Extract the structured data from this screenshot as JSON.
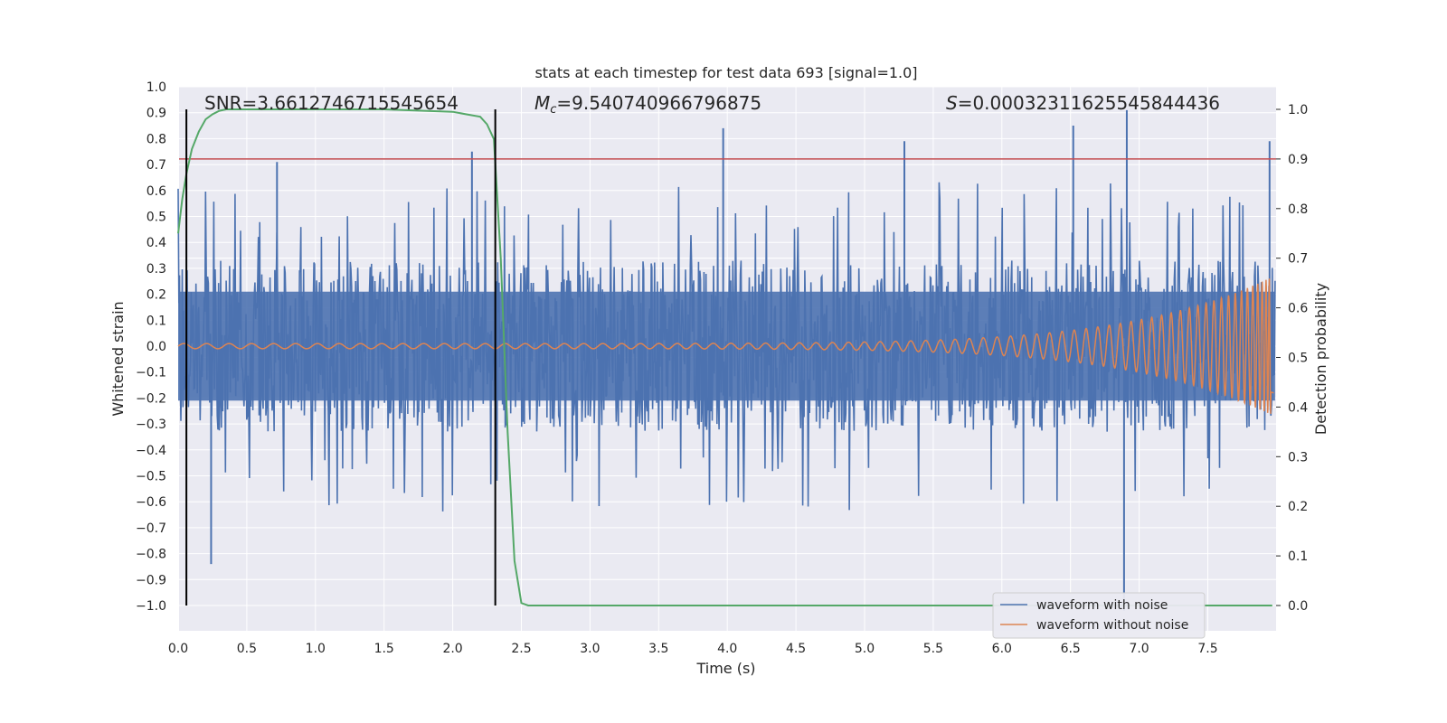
{
  "chart_data": {
    "type": "line",
    "title": "stats at each timestep for test data 693 [signal=1.0]",
    "xlabel": "Time (s)",
    "ylabel": "Whitened strain",
    "y2label": "Detection probability",
    "xlim": [
      0.0,
      8.0
    ],
    "ylim": [
      -1.0,
      1.0
    ],
    "y2lim": [
      0.0,
      1.0
    ],
    "x_ticks": [
      "0.0",
      "0.5",
      "1.0",
      "1.5",
      "2.0",
      "2.5",
      "3.0",
      "3.5",
      "4.0",
      "4.5",
      "5.0",
      "5.5",
      "6.0",
      "6.5",
      "7.0",
      "7.5"
    ],
    "y_ticks": [
      "1.0",
      "0.9",
      "0.8",
      "0.7",
      "0.6",
      "0.5",
      "0.4",
      "0.3",
      "0.2",
      "0.1",
      "0.0",
      "−0.1",
      "−0.2",
      "−0.3",
      "−0.4",
      "−0.5",
      "−0.6",
      "−0.7",
      "−0.8",
      "−0.9",
      "−1.0"
    ],
    "y2_ticks": [
      "1.0",
      "0.9",
      "0.8",
      "0.7",
      "0.6",
      "0.5",
      "0.4",
      "0.3",
      "0.2",
      "0.1",
      "0.0"
    ],
    "grid": true,
    "legend_position": "lower-right",
    "annotations": {
      "snr": "SNR=3.6612746715545654",
      "mc_symbol": "M",
      "mc_sub": "c",
      "mc_value": "=9.540740966796875",
      "s_symbol": "S",
      "s_value": "=0.00032311625545844436"
    },
    "series": [
      {
        "name": "waveform with noise",
        "color": "#4c72b0",
        "axis": "left",
        "noise_amplitude": 0.33,
        "peaks": [
          {
            "x": 0.24,
            "y": -0.84
          },
          {
            "x": 0.72,
            "y": 0.71
          },
          {
            "x": 2.14,
            "y": 0.75
          },
          {
            "x": 3.97,
            "y": 0.84
          },
          {
            "x": 5.29,
            "y": 0.79
          },
          {
            "x": 6.52,
            "y": 0.85
          },
          {
            "x": 6.89,
            "y": -1.02
          },
          {
            "x": 6.91,
            "y": 0.91
          },
          {
            "x": 7.95,
            "y": 0.79
          }
        ]
      },
      {
        "name": "waveform without noise",
        "color": "#dd8452",
        "axis": "left",
        "amplitude_start": 0.01,
        "amplitude_end": 0.27,
        "coalescence_time": 7.98
      },
      {
        "name": "detection probability",
        "color": "#55a868",
        "axis": "right",
        "x": [
          0.0,
          0.03,
          0.06,
          0.1,
          0.15,
          0.2,
          0.25,
          0.3,
          0.35,
          0.5,
          1.0,
          1.5,
          2.0,
          2.1,
          2.2,
          2.25,
          2.3,
          2.35,
          2.4,
          2.45,
          2.5,
          2.55,
          2.6,
          7.97
        ],
        "y": [
          0.75,
          0.82,
          0.87,
          0.92,
          0.955,
          0.98,
          0.99,
          0.997,
          1.0,
          1.0,
          1.0,
          1.0,
          0.995,
          0.99,
          0.985,
          0.97,
          0.94,
          0.7,
          0.35,
          0.09,
          0.005,
          0.0,
          0.0,
          0.0
        ]
      }
    ],
    "threshold": {
      "value": 0.9,
      "axis": "right",
      "color": "#c44e52"
    },
    "vlines": [
      {
        "x": 0.06,
        "color": "#000000"
      },
      {
        "x": 2.31,
        "color": "#000000"
      }
    ],
    "legend": {
      "entries": [
        "waveform with noise",
        "waveform without noise"
      ]
    }
  }
}
